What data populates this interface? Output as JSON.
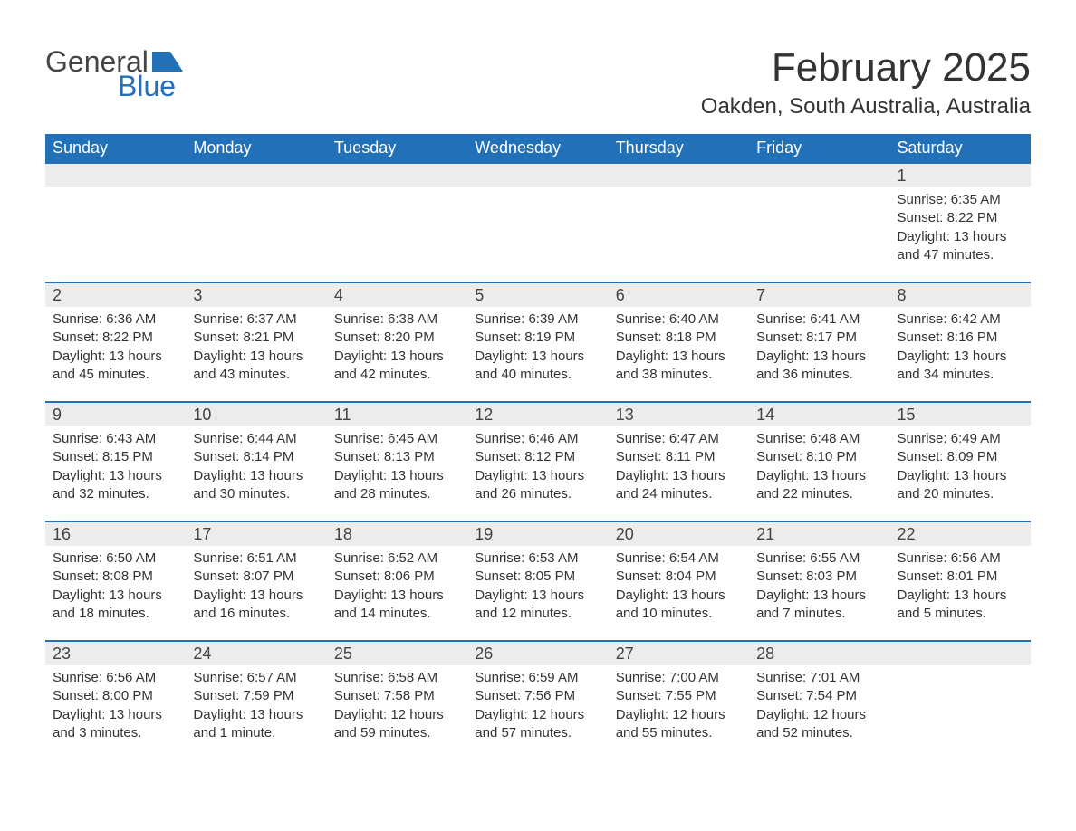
{
  "brand": {
    "word1": "General",
    "word2": "Blue",
    "accent_color": "#2270b8"
  },
  "title": "February 2025",
  "location": "Oakden, South Australia, Australia",
  "columns": [
    "Sunday",
    "Monday",
    "Tuesday",
    "Wednesday",
    "Thursday",
    "Friday",
    "Saturday"
  ],
  "colors": {
    "header_bg": "#2270b8",
    "header_text": "#ffffff",
    "row_divider": "#2270b8",
    "daynum_bg": "#ececec",
    "text": "#333333",
    "background": "#ffffff"
  },
  "weeks": [
    [
      null,
      null,
      null,
      null,
      null,
      null,
      {
        "n": "1",
        "sunrise": "6:35 AM",
        "sunset": "8:22 PM",
        "daylight": "13 hours and 47 minutes."
      }
    ],
    [
      {
        "n": "2",
        "sunrise": "6:36 AM",
        "sunset": "8:22 PM",
        "daylight": "13 hours and 45 minutes."
      },
      {
        "n": "3",
        "sunrise": "6:37 AM",
        "sunset": "8:21 PM",
        "daylight": "13 hours and 43 minutes."
      },
      {
        "n": "4",
        "sunrise": "6:38 AM",
        "sunset": "8:20 PM",
        "daylight": "13 hours and 42 minutes."
      },
      {
        "n": "5",
        "sunrise": "6:39 AM",
        "sunset": "8:19 PM",
        "daylight": "13 hours and 40 minutes."
      },
      {
        "n": "6",
        "sunrise": "6:40 AM",
        "sunset": "8:18 PM",
        "daylight": "13 hours and 38 minutes."
      },
      {
        "n": "7",
        "sunrise": "6:41 AM",
        "sunset": "8:17 PM",
        "daylight": "13 hours and 36 minutes."
      },
      {
        "n": "8",
        "sunrise": "6:42 AM",
        "sunset": "8:16 PM",
        "daylight": "13 hours and 34 minutes."
      }
    ],
    [
      {
        "n": "9",
        "sunrise": "6:43 AM",
        "sunset": "8:15 PM",
        "daylight": "13 hours and 32 minutes."
      },
      {
        "n": "10",
        "sunrise": "6:44 AM",
        "sunset": "8:14 PM",
        "daylight": "13 hours and 30 minutes."
      },
      {
        "n": "11",
        "sunrise": "6:45 AM",
        "sunset": "8:13 PM",
        "daylight": "13 hours and 28 minutes."
      },
      {
        "n": "12",
        "sunrise": "6:46 AM",
        "sunset": "8:12 PM",
        "daylight": "13 hours and 26 minutes."
      },
      {
        "n": "13",
        "sunrise": "6:47 AM",
        "sunset": "8:11 PM",
        "daylight": "13 hours and 24 minutes."
      },
      {
        "n": "14",
        "sunrise": "6:48 AM",
        "sunset": "8:10 PM",
        "daylight": "13 hours and 22 minutes."
      },
      {
        "n": "15",
        "sunrise": "6:49 AM",
        "sunset": "8:09 PM",
        "daylight": "13 hours and 20 minutes."
      }
    ],
    [
      {
        "n": "16",
        "sunrise": "6:50 AM",
        "sunset": "8:08 PM",
        "daylight": "13 hours and 18 minutes."
      },
      {
        "n": "17",
        "sunrise": "6:51 AM",
        "sunset": "8:07 PM",
        "daylight": "13 hours and 16 minutes."
      },
      {
        "n": "18",
        "sunrise": "6:52 AM",
        "sunset": "8:06 PM",
        "daylight": "13 hours and 14 minutes."
      },
      {
        "n": "19",
        "sunrise": "6:53 AM",
        "sunset": "8:05 PM",
        "daylight": "13 hours and 12 minutes."
      },
      {
        "n": "20",
        "sunrise": "6:54 AM",
        "sunset": "8:04 PM",
        "daylight": "13 hours and 10 minutes."
      },
      {
        "n": "21",
        "sunrise": "6:55 AM",
        "sunset": "8:03 PM",
        "daylight": "13 hours and 7 minutes."
      },
      {
        "n": "22",
        "sunrise": "6:56 AM",
        "sunset": "8:01 PM",
        "daylight": "13 hours and 5 minutes."
      }
    ],
    [
      {
        "n": "23",
        "sunrise": "6:56 AM",
        "sunset": "8:00 PM",
        "daylight": "13 hours and 3 minutes."
      },
      {
        "n": "24",
        "sunrise": "6:57 AM",
        "sunset": "7:59 PM",
        "daylight": "13 hours and 1 minute."
      },
      {
        "n": "25",
        "sunrise": "6:58 AM",
        "sunset": "7:58 PM",
        "daylight": "12 hours and 59 minutes."
      },
      {
        "n": "26",
        "sunrise": "6:59 AM",
        "sunset": "7:56 PM",
        "daylight": "12 hours and 57 minutes."
      },
      {
        "n": "27",
        "sunrise": "7:00 AM",
        "sunset": "7:55 PM",
        "daylight": "12 hours and 55 minutes."
      },
      {
        "n": "28",
        "sunrise": "7:01 AM",
        "sunset": "7:54 PM",
        "daylight": "12 hours and 52 minutes."
      },
      null
    ]
  ],
  "labels": {
    "sunrise": "Sunrise: ",
    "sunset": "Sunset: ",
    "daylight": "Daylight: "
  }
}
